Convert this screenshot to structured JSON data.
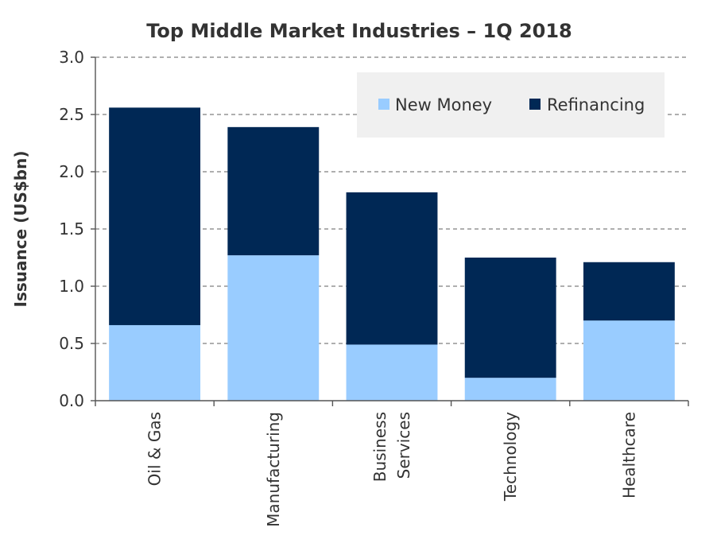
{
  "chart_data": {
    "type": "bar",
    "stacked": true,
    "title": "Top Middle Market Industries  – 1Q 2018",
    "xlabel": "",
    "ylabel": "Issuance (US$bn)",
    "ylim": [
      0,
      3.0
    ],
    "yticks": [
      "0.0",
      "0.5",
      "1.0",
      "1.5",
      "2.0",
      "2.5",
      "3.0"
    ],
    "grid": true,
    "legend_position": "top-right",
    "categories": [
      [
        "Oil & Gas"
      ],
      [
        "Manufacturing"
      ],
      [
        "Business",
        "Services"
      ],
      [
        "Technology"
      ],
      [
        "Healthcare"
      ]
    ],
    "series": [
      {
        "name": "New Money",
        "color": "#99ccff",
        "values": [
          0.66,
          1.27,
          0.49,
          0.2,
          0.7
        ]
      },
      {
        "name": "Refinancing",
        "color": "#002855",
        "values": [
          1.9,
          1.12,
          1.33,
          1.05,
          0.51
        ]
      }
    ],
    "legend_background": "#f0f0f0"
  }
}
